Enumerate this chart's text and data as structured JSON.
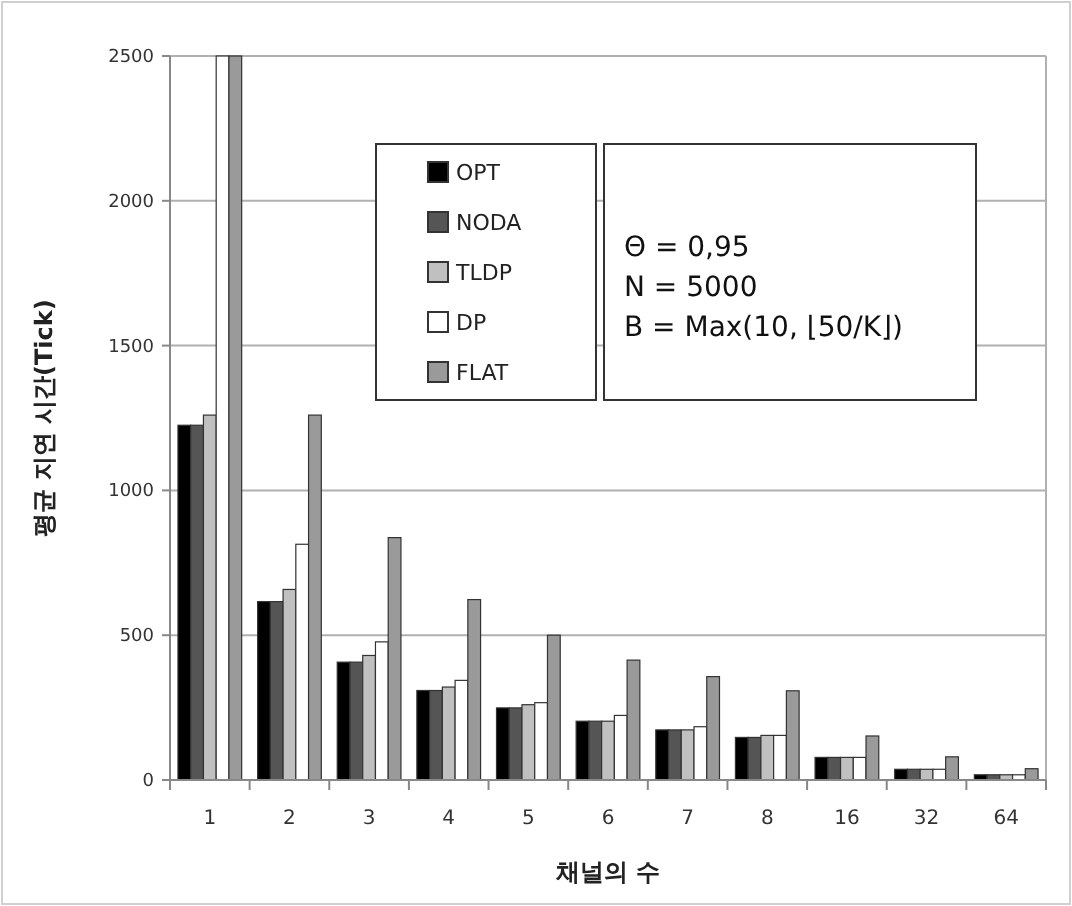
{
  "chart_data": {
    "type": "bar",
    "xlabel": "채널의 수",
    "ylabel": "평균 지연 시간(Tick)",
    "categories": [
      "1",
      "2",
      "3",
      "4",
      "5",
      "6",
      "7",
      "8",
      "16",
      "32",
      "64"
    ],
    "series": [
      {
        "name": "OPT",
        "color": "#000000",
        "values": [
          1225,
          616,
          407,
          309,
          249,
          203,
          173,
          147,
          78,
          37,
          18
        ]
      },
      {
        "name": "NODA",
        "color": "#555555",
        "values": [
          1225,
          616,
          407,
          309,
          249,
          203,
          173,
          147,
          78,
          37,
          18
        ]
      },
      {
        "name": "TLDP",
        "color": "#c0c0c0",
        "values": [
          1260,
          658,
          430,
          321,
          260,
          203,
          173,
          154,
          78,
          37,
          18
        ]
      },
      {
        "name": "DP",
        "color": "#ffffff",
        "values": [
          2500,
          814,
          477,
          344,
          267,
          223,
          184,
          154,
          78,
          37,
          18
        ]
      },
      {
        "name": "FLAT",
        "color": "#9a9a9a",
        "values": [
          2500,
          1260,
          837,
          623,
          500,
          414,
          357,
          308,
          152,
          80,
          39
        ]
      }
    ],
    "ylim": [
      0,
      2500
    ],
    "yticks": [
      0,
      500,
      1000,
      1500,
      2000,
      2500
    ],
    "grid": "y",
    "legend": "top",
    "annotations": [
      "Θ = 0,95",
      "N = 5000",
      "B = Max(10, ⌊50/K⌋)"
    ]
  }
}
